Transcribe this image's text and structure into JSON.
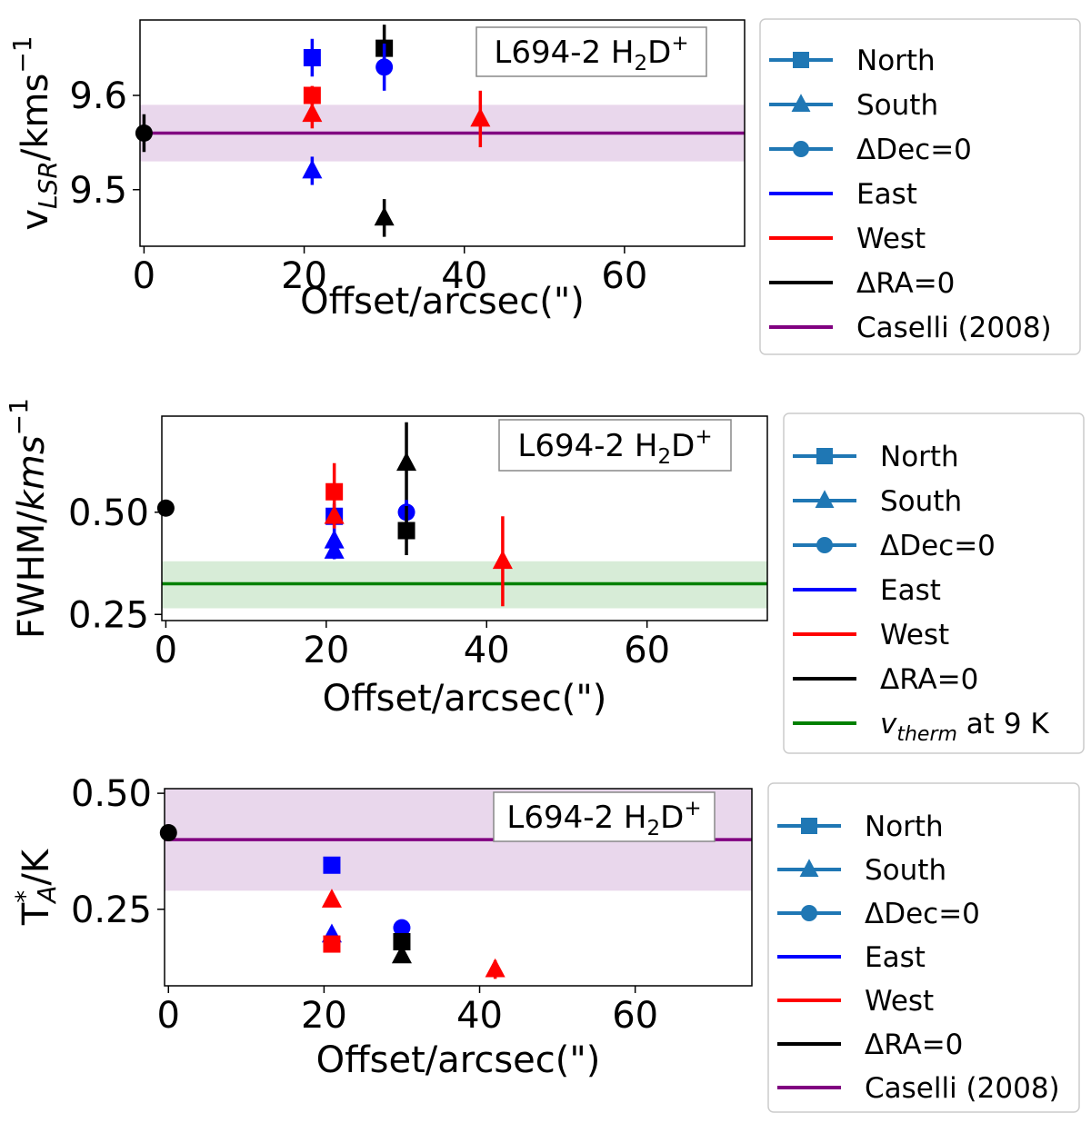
{
  "colors": {
    "north_south_dec": "#1f77b4",
    "east": "#0000ff",
    "west": "#ff0000",
    "ra0": "#000000",
    "caselli": "#800080",
    "caselli_band": "#e9d7ec",
    "therm": "#008000",
    "therm_band": "#d7ecd7"
  },
  "chart_data": [
    {
      "type": "scatter",
      "panel": "vlsr",
      "annotation": {
        "prefix": "L694-2 H",
        "sub": "2",
        "mid": "D",
        "sup": "+"
      },
      "xlabel": "Offset/arcsec(\")",
      "ylabel": {
        "base": "v",
        "sub": "LSR",
        "rest": "/kms",
        "sup": "−1"
      },
      "xlim": [
        -0.5,
        75
      ],
      "ylim": [
        9.44,
        9.68
      ],
      "xticks": [
        0,
        20,
        40,
        60
      ],
      "yticks": [
        9.5,
        9.6
      ],
      "ytick_labels": [
        "9.5",
        "9.6"
      ],
      "reference": {
        "value": 9.56,
        "band": [
          9.53,
          9.59
        ],
        "color_key": "caselli"
      },
      "points": [
        {
          "x": 0,
          "y": 9.56,
          "err": 0.02,
          "marker": "circle",
          "color": "ra0"
        },
        {
          "x": 21,
          "y": 9.64,
          "err": 0.02,
          "marker": "square",
          "color": "east"
        },
        {
          "x": 21,
          "y": 9.6,
          "err": 0.01,
          "marker": "square",
          "color": "west"
        },
        {
          "x": 21,
          "y": 9.58,
          "err": 0.015,
          "marker": "triangle",
          "color": "west"
        },
        {
          "x": 21,
          "y": 9.52,
          "err": 0.015,
          "marker": "triangle",
          "color": "east"
        },
        {
          "x": 30,
          "y": 9.65,
          "err": 0.025,
          "marker": "square",
          "color": "ra0"
        },
        {
          "x": 30,
          "y": 9.63,
          "err": 0.025,
          "marker": "circle",
          "color": "east"
        },
        {
          "x": 30,
          "y": 9.47,
          "err": 0.02,
          "marker": "triangle",
          "color": "ra0"
        },
        {
          "x": 42,
          "y": 9.575,
          "err": 0.03,
          "marker": "triangle",
          "color": "west"
        }
      ],
      "legend": [
        {
          "label": "North",
          "marker": "square",
          "color": "north_south_dec"
        },
        {
          "label": "South",
          "marker": "triangle",
          "color": "north_south_dec"
        },
        {
          "label": "ΔDec=0",
          "marker": "circle",
          "color": "north_south_dec"
        },
        {
          "label": "East",
          "marker": "none",
          "color": "east"
        },
        {
          "label": "West",
          "marker": "none",
          "color": "west"
        },
        {
          "label": "ΔRA=0",
          "marker": "none",
          "color": "ra0"
        },
        {
          "label": "Caselli (2008)",
          "marker": "none",
          "color": "caselli"
        }
      ]
    },
    {
      "type": "scatter",
      "panel": "fwhm",
      "annotation": {
        "prefix": "L694-2 H",
        "sub": "2",
        "mid": "D",
        "sup": "+"
      },
      "xlabel": "Offset/arcsec(\")",
      "ylabel": {
        "base": "FWHM/",
        "italic": "kms",
        "sup": "−1"
      },
      "xlim": [
        -0.5,
        75
      ],
      "ylim": [
        0.235,
        0.735
      ],
      "xticks": [
        0,
        20,
        40,
        60
      ],
      "yticks": [
        0.25,
        0.5
      ],
      "ytick_labels": [
        "0.25",
        "0.50"
      ],
      "reference": {
        "value": 0.325,
        "band": [
          0.265,
          0.38
        ],
        "color_key": "therm"
      },
      "points": [
        {
          "x": 0,
          "y": 0.51,
          "err": 0.02,
          "marker": "circle",
          "color": "ra0"
        },
        {
          "x": 21,
          "y": 0.55,
          "err": 0.07,
          "marker": "square",
          "color": "west"
        },
        {
          "x": 21,
          "y": 0.49,
          "err": 0.03,
          "marker": "square",
          "color": "east"
        },
        {
          "x": 21,
          "y": 0.49,
          "err": 0.03,
          "marker": "triangle",
          "color": "west"
        },
        {
          "x": 21,
          "y": 0.43,
          "err": 0.03,
          "marker": "triangle",
          "color": "east"
        },
        {
          "x": 21,
          "y": 0.405,
          "err": 0.02,
          "marker": "triangle",
          "color": "east"
        },
        {
          "x": 30,
          "y": 0.62,
          "err": 0.1,
          "marker": "triangle",
          "color": "ra0"
        },
        {
          "x": 30,
          "y": 0.5,
          "err": 0.03,
          "marker": "circle",
          "color": "east"
        },
        {
          "x": 30,
          "y": 0.455,
          "err": 0.06,
          "marker": "square",
          "color": "ra0"
        },
        {
          "x": 42,
          "y": 0.38,
          "err": 0.11,
          "marker": "triangle",
          "color": "west"
        }
      ],
      "legend": [
        {
          "label": "North",
          "marker": "square",
          "color": "north_south_dec"
        },
        {
          "label": "South",
          "marker": "triangle",
          "color": "north_south_dec"
        },
        {
          "label": "ΔDec=0",
          "marker": "circle",
          "color": "north_south_dec"
        },
        {
          "label": "East",
          "marker": "none",
          "color": "east"
        },
        {
          "label": "West",
          "marker": "none",
          "color": "west"
        },
        {
          "label": "ΔRA=0",
          "marker": "none",
          "color": "ra0"
        },
        {
          "label": "v_therm at 9 K",
          "marker": "none",
          "color": "therm",
          "rich": "vtherm"
        }
      ]
    },
    {
      "type": "scatter",
      "panel": "ta",
      "annotation": {
        "prefix": "L694-2 H",
        "sub": "2",
        "mid": "D",
        "sup": "+"
      },
      "xlabel": "Offset/arcsec(\")",
      "ylabel": {
        "base": "T",
        "sub": "A",
        "sup": "*",
        "rest": "/K"
      },
      "xlim": [
        -0.5,
        75
      ],
      "ylim": [
        0.085,
        0.51
      ],
      "xticks": [
        0,
        20,
        40,
        60
      ],
      "yticks": [
        0.25,
        0.5
      ],
      "ytick_labels": [
        "0.25",
        "0.50"
      ],
      "reference": {
        "value": 0.4,
        "band": [
          0.29,
          0.51
        ],
        "color_key": "caselli"
      },
      "points": [
        {
          "x": 0,
          "y": 0.415,
          "err": 0.015,
          "marker": "circle",
          "color": "ra0"
        },
        {
          "x": 21,
          "y": 0.345,
          "err": 0.015,
          "marker": "square",
          "color": "east"
        },
        {
          "x": 21,
          "y": 0.27,
          "err": 0.01,
          "marker": "triangle",
          "color": "west"
        },
        {
          "x": 21,
          "y": 0.195,
          "err": 0.01,
          "marker": "triangle",
          "color": "east"
        },
        {
          "x": 21,
          "y": 0.175,
          "err": 0.01,
          "marker": "square",
          "color": "west"
        },
        {
          "x": 30,
          "y": 0.21,
          "err": 0.015,
          "marker": "circle",
          "color": "east"
        },
        {
          "x": 30,
          "y": 0.18,
          "err": 0.015,
          "marker": "square",
          "color": "ra0"
        },
        {
          "x": 30,
          "y": 0.15,
          "err": 0.01,
          "marker": "triangle",
          "color": "ra0"
        },
        {
          "x": 42,
          "y": 0.12,
          "err": 0.02,
          "marker": "triangle",
          "color": "west"
        }
      ],
      "legend": [
        {
          "label": "North",
          "marker": "square",
          "color": "north_south_dec"
        },
        {
          "label": "South",
          "marker": "triangle",
          "color": "north_south_dec"
        },
        {
          "label": "ΔDec=0",
          "marker": "circle",
          "color": "north_south_dec"
        },
        {
          "label": "East",
          "marker": "none",
          "color": "east"
        },
        {
          "label": "West",
          "marker": "none",
          "color": "west"
        },
        {
          "label": "ΔRA=0",
          "marker": "none",
          "color": "ra0"
        },
        {
          "label": "Caselli (2008)",
          "marker": "none",
          "color": "caselli"
        }
      ]
    }
  ]
}
